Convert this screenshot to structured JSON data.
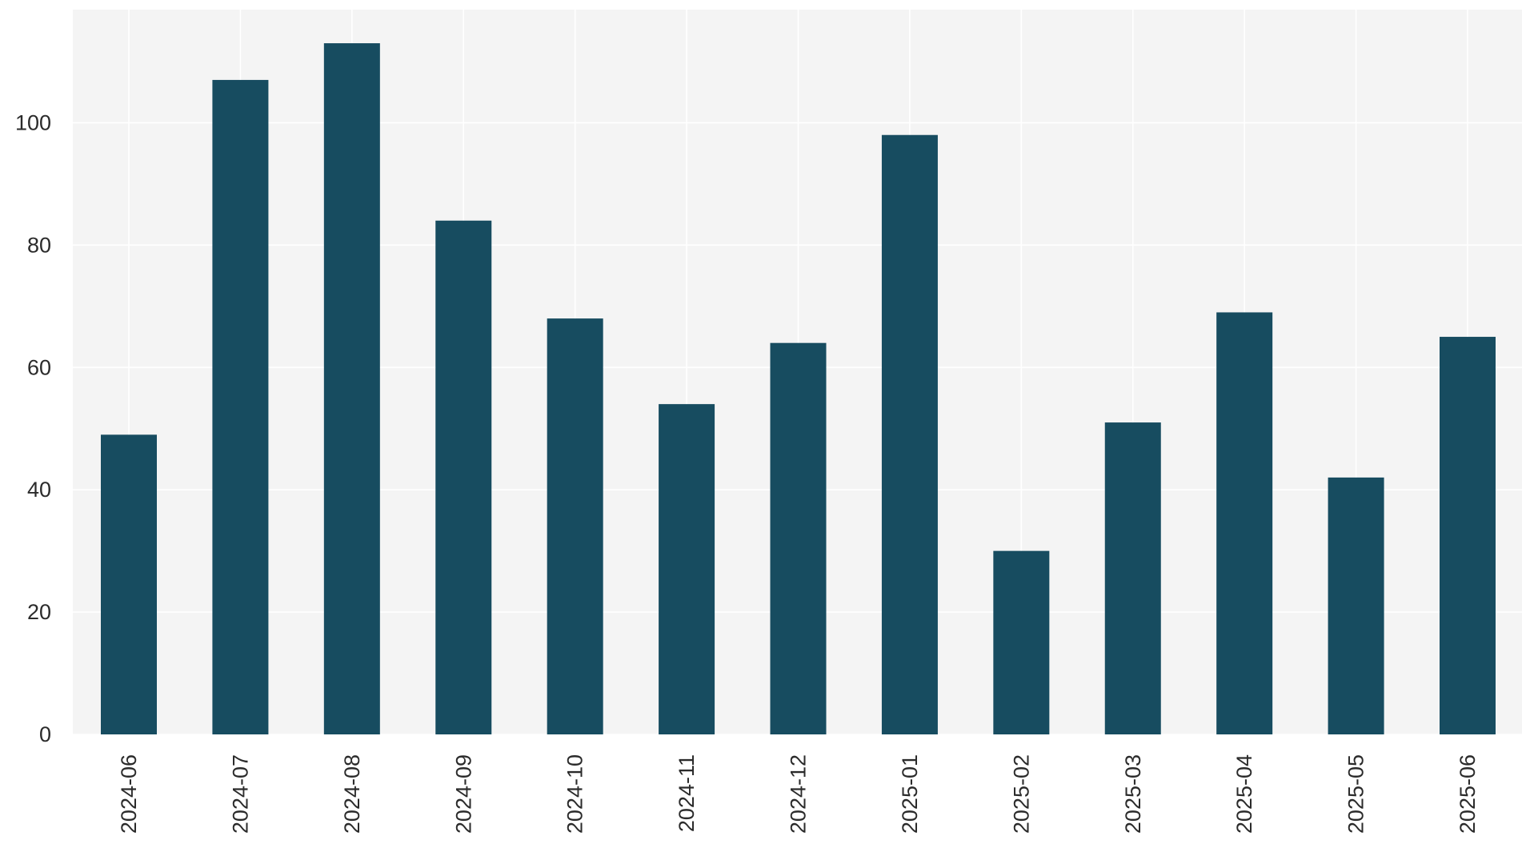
{
  "chart_data": {
    "type": "bar",
    "title": "",
    "xlabel": "",
    "ylabel": "",
    "categories": [
      "2024-06",
      "2024-07",
      "2024-08",
      "2024-09",
      "2024-10",
      "2024-11",
      "2024-12",
      "2025-01",
      "2025-02",
      "2025-03",
      "2025-04",
      "2025-05",
      "2025-06"
    ],
    "values": [
      49,
      107,
      113,
      84,
      68,
      54,
      64,
      98,
      30,
      51,
      69,
      42,
      65
    ],
    "ylim": [
      0,
      118.5
    ],
    "yticks": [
      0,
      20,
      40,
      60,
      80,
      100
    ],
    "grid": true,
    "legend": false,
    "colors": {
      "bar": "#174c60",
      "plot_background": "#f4f4f4",
      "grid": "#ffffff",
      "text": "#2b2b2b"
    }
  }
}
